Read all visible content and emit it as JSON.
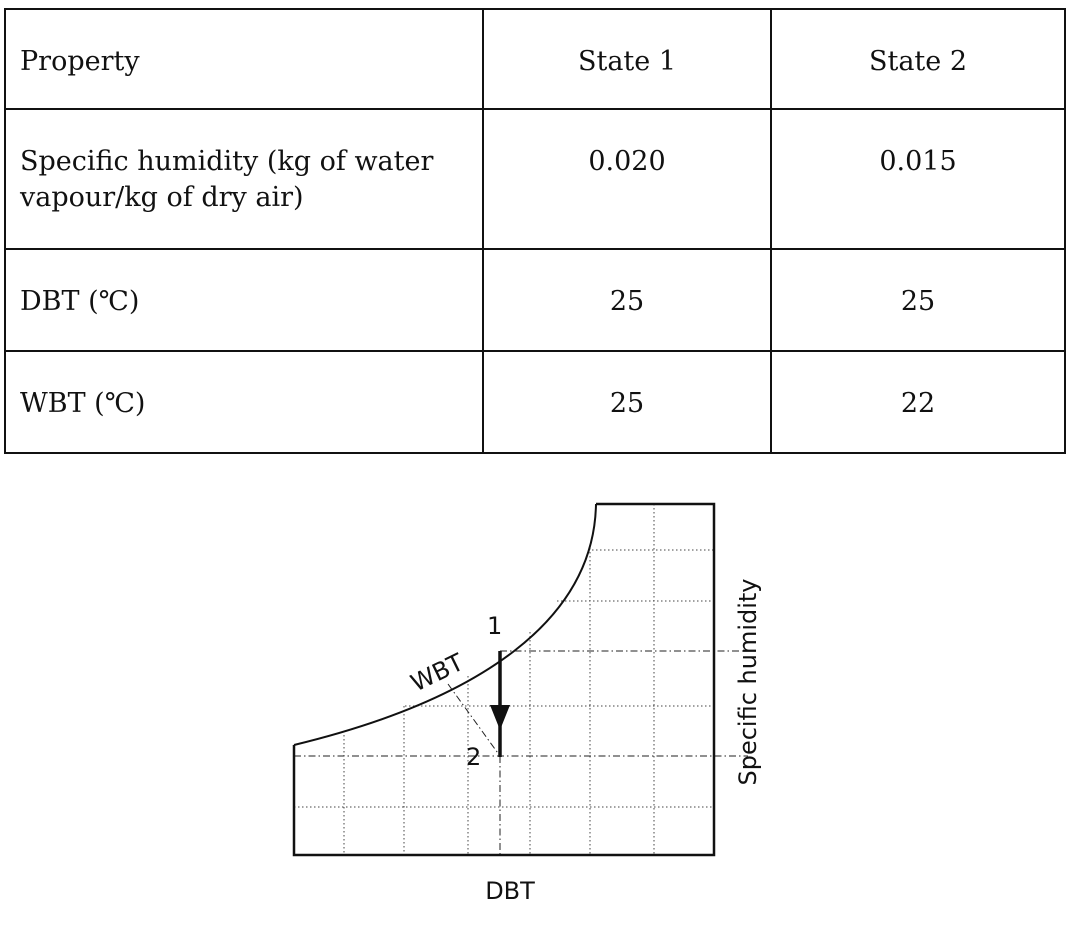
{
  "table": {
    "headers": [
      "Property",
      "State 1",
      "State 2"
    ],
    "rows": [
      {
        "property": "Specific humidity (kg of water vapour/kg of dry air)",
        "state1": "0.020",
        "state2": "0.015"
      },
      {
        "property": "DBT (℃)",
        "state1": "25",
        "state2": "25"
      },
      {
        "property": "WBT (℃)",
        "state1": "25",
        "state2": "22"
      }
    ]
  },
  "diagram": {
    "x_axis_label": "DBT",
    "y_axis_label": "Specific humidity",
    "curve_label": "WBT",
    "point1_label": "1",
    "point2_label": "2"
  }
}
